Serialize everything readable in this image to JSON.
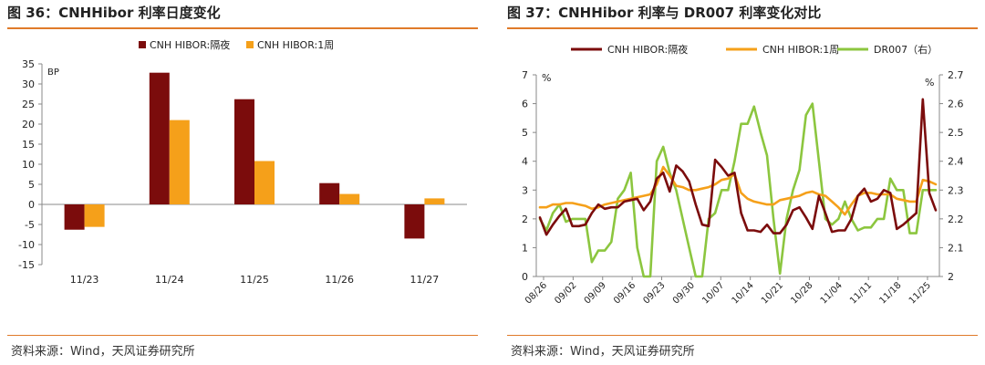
{
  "left": {
    "title": "图 36：CNHHibor 利率日度变化",
    "source": "资料来源：Wind，天风证券研究所"
  },
  "right": {
    "title": "图 37：CNHHibor 利率与 DR007 利率变化对比",
    "source": "资料来源：Wind，天风证券研究所"
  },
  "chart_data": [
    {
      "type": "bar",
      "categories": [
        "11/23",
        "11/24",
        "11/25",
        "11/26",
        "11/27"
      ],
      "series": [
        {
          "name": "CNH HIBOR:隔夜",
          "color": "#7b0c0c",
          "values": [
            -6.3,
            32.8,
            26.2,
            5.3,
            -8.5
          ]
        },
        {
          "name": "CNH HIBOR:1周",
          "color": "#f5a01a",
          "values": [
            -5.6,
            21.0,
            10.8,
            2.6,
            1.5
          ]
        }
      ],
      "ylabel": "BP",
      "ylim": [
        -15,
        35
      ],
      "yticks": [
        -15,
        -10,
        -5,
        0,
        5,
        10,
        15,
        20,
        25,
        30,
        35
      ],
      "legend": "top-center"
    },
    {
      "type": "line",
      "x_ticks": [
        "08/26",
        "09/02",
        "09/09",
        "09/16",
        "09/23",
        "09/30",
        "10/07",
        "10/14",
        "10/21",
        "10/28",
        "11/04",
        "11/11",
        "11/18",
        "11/25"
      ],
      "y_left": {
        "label": "%",
        "ylim": [
          0,
          7
        ],
        "ticks": [
          0,
          1,
          2,
          3,
          4,
          5,
          6,
          7
        ]
      },
      "y_right": {
        "label": "%",
        "ylim": [
          2.0,
          2.7
        ],
        "ticks": [
          "2",
          "2.1",
          "2.2",
          "2.3",
          "2.4",
          "2.5",
          "2.6",
          "2.7"
        ]
      },
      "legend": "top",
      "series": [
        {
          "name": "CNH HIBOR:隔夜",
          "axis": "left",
          "color": "#7b0c0c",
          "values": [
            2.05,
            1.45,
            1.8,
            2.1,
            2.35,
            1.75,
            1.75,
            1.8,
            2.2,
            2.5,
            2.35,
            2.4,
            2.4,
            2.6,
            2.65,
            2.7,
            2.3,
            2.6,
            3.4,
            3.6,
            2.95,
            3.85,
            3.65,
            3.3,
            2.5,
            1.8,
            1.75,
            4.05,
            3.8,
            3.5,
            3.6,
            2.2,
            1.6,
            1.6,
            1.55,
            1.8,
            1.5,
            1.5,
            1.8,
            2.3,
            2.4,
            2.05,
            1.65,
            2.8,
            2.2,
            1.55,
            1.6,
            1.6,
            2.0,
            2.8,
            3.05,
            2.6,
            2.7,
            3.0,
            2.9,
            1.65,
            1.8,
            2.0,
            2.2,
            6.15,
            2.9,
            2.3
          ]
        },
        {
          "name": "CNH HIBOR:1周",
          "axis": "left",
          "color": "#f5a01a",
          "values": [
            2.4,
            2.4,
            2.5,
            2.5,
            2.55,
            2.55,
            2.5,
            2.45,
            2.35,
            2.4,
            2.5,
            2.55,
            2.6,
            2.65,
            2.7,
            2.75,
            2.8,
            2.85,
            3.2,
            3.8,
            3.5,
            3.15,
            3.1,
            3.0,
            3.0,
            3.05,
            3.1,
            3.2,
            3.35,
            3.4,
            3.55,
            2.9,
            2.7,
            2.6,
            2.55,
            2.5,
            2.5,
            2.65,
            2.7,
            2.75,
            2.8,
            2.9,
            2.95,
            2.85,
            2.8,
            2.6,
            2.4,
            2.15,
            2.5,
            2.8,
            2.9,
            2.9,
            2.85,
            2.85,
            2.85,
            2.7,
            2.65,
            2.6,
            2.6,
            3.35,
            3.3,
            3.2
          ]
        },
        {
          "name": "DR007（右）",
          "axis": "right",
          "color": "#8cc63f",
          "values": [
            2.2,
            2.16,
            2.22,
            2.25,
            2.19,
            2.2,
            2.2,
            2.2,
            2.05,
            2.09,
            2.09,
            2.12,
            2.27,
            2.3,
            2.36,
            2.1,
            2.0,
            2.0,
            2.4,
            2.45,
            2.36,
            2.3,
            2.2,
            2.1,
            2.0,
            2.0,
            2.2,
            2.22,
            2.3,
            2.3,
            2.4,
            2.53,
            2.53,
            2.59,
            2.5,
            2.42,
            2.2,
            2.01,
            2.2,
            2.3,
            2.37,
            2.56,
            2.6,
            2.4,
            2.2,
            2.18,
            2.2,
            2.26,
            2.2,
            2.16,
            2.17,
            2.17,
            2.2,
            2.2,
            2.34,
            2.3,
            2.3,
            2.15,
            2.15,
            2.3,
            2.3,
            2.3
          ]
        }
      ]
    }
  ]
}
